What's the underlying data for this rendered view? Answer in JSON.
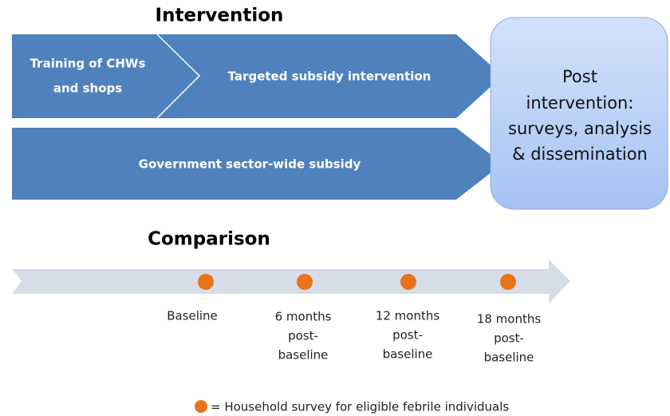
{
  "intervention": {
    "title": "Intervention",
    "top_row": [
      {
        "lines": [
          "Training of CHWs",
          "and shops"
        ]
      },
      {
        "lines": [
          "Targeted subsidy intervention"
        ]
      }
    ],
    "bottom_row": {
      "lines": [
        "Government sector-wide subsidy"
      ]
    }
  },
  "post_intervention": {
    "lines": [
      "Post",
      "intervention:",
      "surveys, analysis",
      "& dissemination"
    ]
  },
  "comparison": {
    "title": "Comparison",
    "timepoints": [
      {
        "lines": [
          "Baseline"
        ]
      },
      {
        "lines": [
          "6 months",
          "post-",
          "baseline"
        ]
      },
      {
        "lines": [
          "12 months",
          "post-",
          "baseline"
        ]
      },
      {
        "lines": [
          "18 months",
          "post-",
          "baseline"
        ]
      }
    ]
  },
  "legend": {
    "text": "= Household survey for eligible febrile individuals"
  }
}
